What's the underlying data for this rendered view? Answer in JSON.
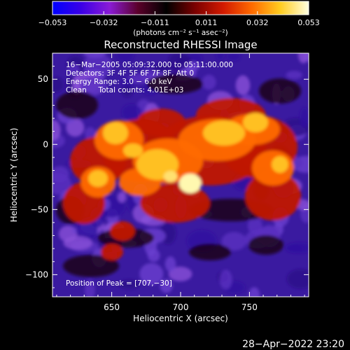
{
  "colorbar": {
    "ticks": [
      "−0.053",
      "−0.032",
      "−0.011",
      "0.011",
      "0.032",
      "0.053"
    ],
    "unit_label": "(photons cm⁻² s⁻¹ asec⁻²)",
    "range": [
      -0.053,
      0.053
    ],
    "stops": [
      "#0000ff",
      "#3a00e6",
      "#8a1bd6",
      "#5a002a",
      "#000000",
      "#7a0000",
      "#d21a00",
      "#ff6a00",
      "#ffcc20",
      "#ffffe0"
    ]
  },
  "image": {
    "title": "Reconstructed RHESSI Image",
    "overlay_lines": [
      "16−Mar−2005 05:09:32.000 to 05:11:00.000",
      "Detectors: 3F 4F 5F 6F 7F 8F, Att 0",
      "Energy Range: 3.0 − 6.0 keV",
      "Clean     Total counts: 4.01E+03"
    ],
    "peak_text": "Position of Peak = [707,−30]",
    "x_axis": {
      "label": "Heliocentric X (arcsec)",
      "ticks": [
        "650",
        "700",
        "750"
      ],
      "tick_values": [
        650,
        700,
        750
      ],
      "range": [
        607,
        793
      ]
    },
    "y_axis": {
      "label": "Heliocentric Y (arcsec)",
      "ticks": [
        "50",
        "0",
        "−50",
        "−100"
      ],
      "tick_values": [
        50,
        0,
        -50,
        -100
      ],
      "range": [
        -117,
        70
      ]
    },
    "peak": {
      "x": 707,
      "y": -30
    }
  },
  "footer": {
    "timestamp": "28−Apr−2022 23:20"
  }
}
